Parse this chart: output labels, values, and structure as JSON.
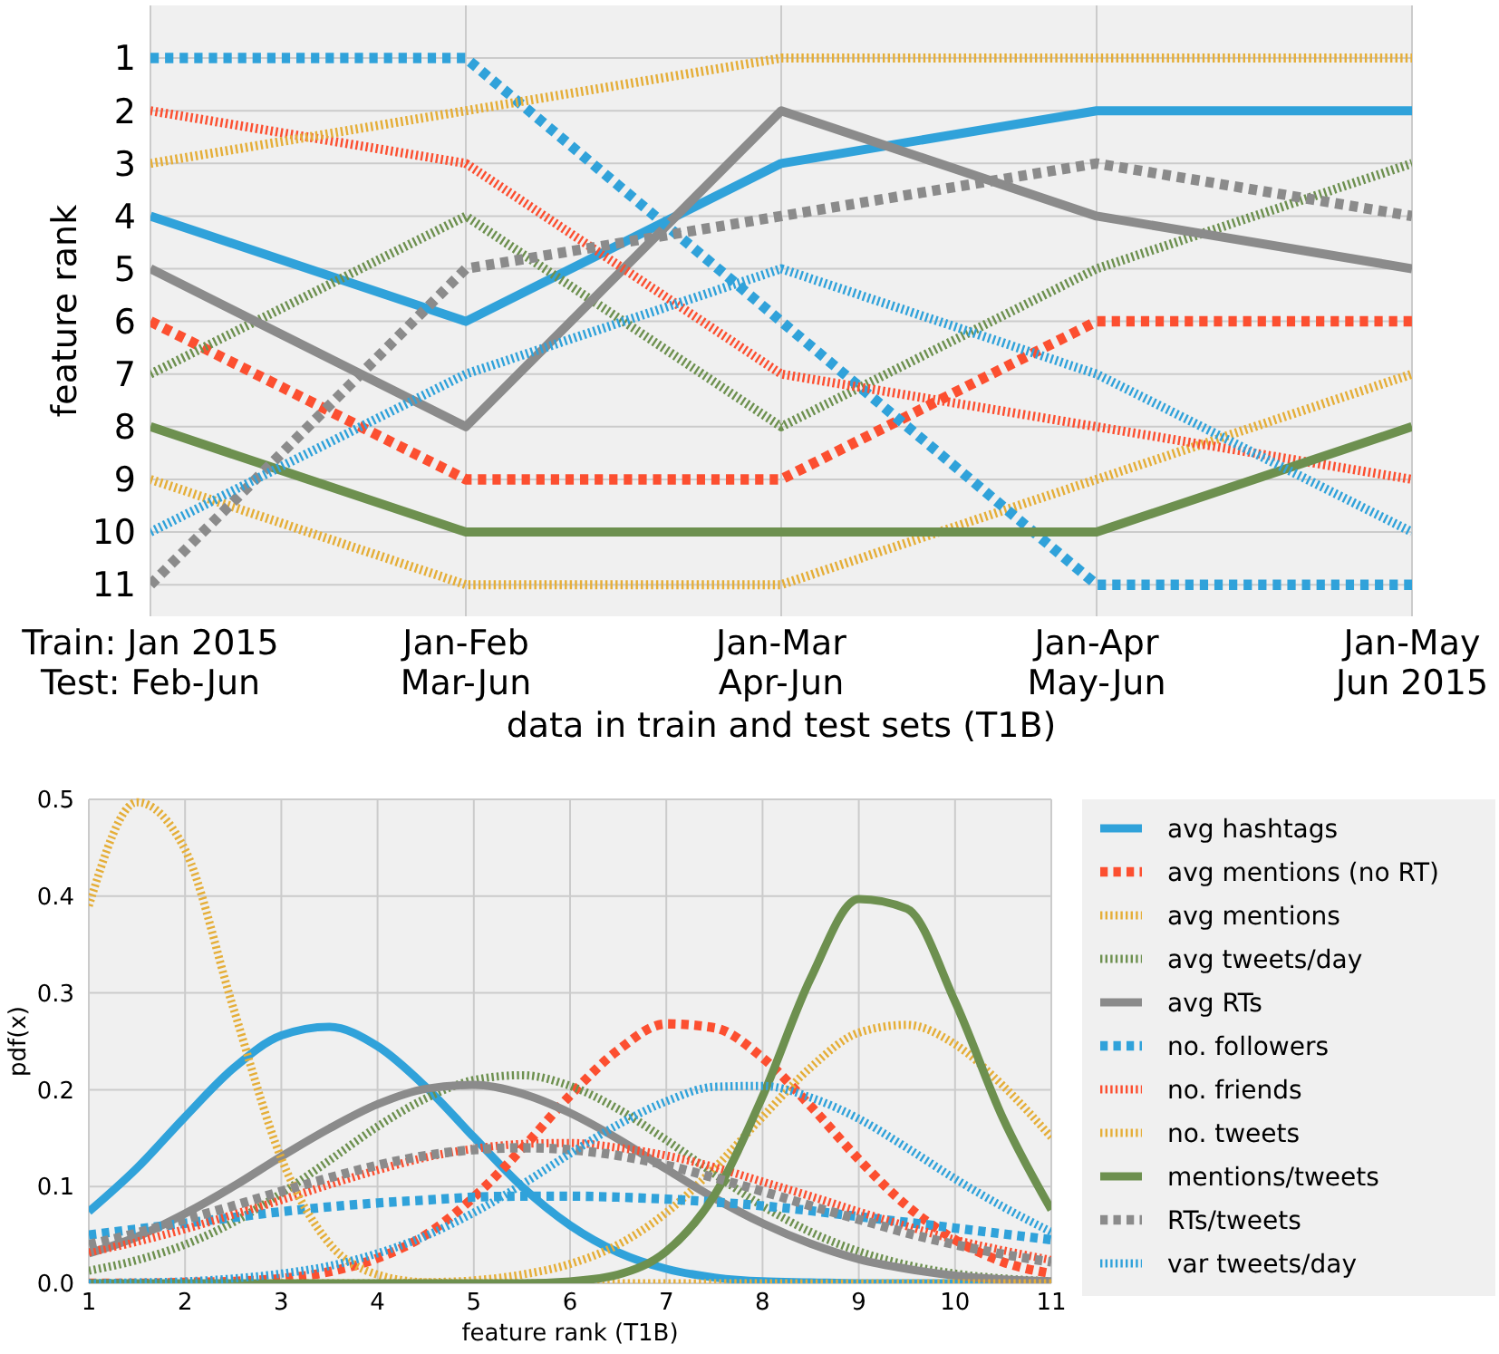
{
  "chart_data": [
    {
      "type": "line",
      "ylabel": "feature rank",
      "xlabel": "data in train and test sets (T1B)",
      "categories": [
        "Train: Jan 2015\nTest: Feb-Jun",
        "Jan-Feb\nMar-Jun",
        "Jan-Mar\nApr-Jun",
        "Jan-Apr\nMay-Jun",
        "Jan-May\nJun 2015"
      ],
      "ylim": [
        11.6,
        0
      ],
      "yticks": [
        1,
        2,
        3,
        4,
        5,
        6,
        7,
        8,
        9,
        10,
        11
      ],
      "grid": true,
      "series": [
        {
          "color": "#30a2da",
          "line_style": "solid",
          "values": [
            4,
            6,
            3,
            2,
            2
          ]
        },
        {
          "color": "#fc4f30",
          "line_style": "dashed",
          "values": [
            6,
            9,
            9,
            6,
            6
          ]
        },
        {
          "color": "#e5ae38",
          "line_style": "dotted",
          "values": [
            9,
            11,
            11,
            9,
            7
          ]
        },
        {
          "color": "#6d904f",
          "line_style": "dotted",
          "values": [
            7,
            4,
            8,
            5,
            3
          ]
        },
        {
          "color": "#8b8b8b",
          "line_style": "solid",
          "values": [
            5,
            8,
            2,
            4,
            5
          ]
        },
        {
          "color": "#30a2da",
          "line_style": "dashed",
          "values": [
            1,
            1,
            6,
            11,
            11
          ]
        },
        {
          "color": "#fc4f30",
          "line_style": "dotted",
          "values": [
            2,
            3,
            7,
            8,
            9
          ]
        },
        {
          "color": "#e5ae38",
          "line_style": "dotted",
          "values": [
            3,
            2,
            1,
            1,
            1
          ]
        },
        {
          "color": "#6d904f",
          "line_style": "solid",
          "values": [
            8,
            10,
            10,
            10,
            8
          ]
        },
        {
          "color": "#8b8b8b",
          "line_style": "dashed",
          "values": [
            11,
            5,
            4,
            3,
            4
          ]
        },
        {
          "color": "#30a2da",
          "line_style": "dotted",
          "values": [
            10,
            7,
            5,
            7,
            10
          ]
        }
      ]
    },
    {
      "type": "line",
      "xlabel": "feature rank (T1B)",
      "ylabel": "pdf(x)",
      "x": [
        1,
        1.5,
        2,
        2.5,
        3,
        3.5,
        4,
        4.5,
        5,
        5.5,
        6,
        6.5,
        7,
        7.5,
        8,
        8.5,
        9,
        9.5,
        10,
        10.5,
        11
      ],
      "xlim": [
        1,
        11
      ],
      "xticks": [
        1,
        2,
        3,
        4,
        5,
        6,
        7,
        8,
        9,
        10,
        11
      ],
      "ylim": [
        0,
        0.5
      ],
      "yticks": [
        {
          "value": 0,
          "label": "0.0"
        },
        {
          "value": 0.1,
          "label": "0.1"
        },
        {
          "value": 0.2,
          "label": "0.2"
        },
        {
          "value": 0.3,
          "label": "0.3"
        },
        {
          "value": 0.4,
          "label": "0.4"
        },
        {
          "value": 0.5,
          "label": "0.5"
        }
      ],
      "grid": true,
      "legend": "right",
      "series": [
        {
          "name": "avg hashtags",
          "color": "#30a2da",
          "line_style": "solid",
          "values": [
            0.074,
            0.119,
            0.172,
            0.222,
            0.256,
            0.265,
            0.245,
            0.203,
            0.151,
            0.1,
            0.06,
            0.032,
            0.015,
            0.006,
            0.002,
            0.001,
            0,
            0,
            0,
            0,
            0
          ]
        },
        {
          "name": "avg mentions (no RT)",
          "color": "#fc4f30",
          "line_style": "dashed",
          "values": [
            0,
            0,
            0.001,
            0.002,
            0.005,
            0.012,
            0.026,
            0.05,
            0.089,
            0.139,
            0.194,
            0.241,
            0.268,
            0.264,
            0.233,
            0.183,
            0.128,
            0.08,
            0.045,
            0.022,
            0.01
          ]
        },
        {
          "name": "avg mentions",
          "color": "#e5ae38",
          "line_style": "dotted",
          "values": [
            null,
            null,
            null,
            null,
            0,
            0,
            0,
            0.001,
            0.003,
            0.009,
            0.02,
            0.04,
            0.073,
            0.119,
            0.172,
            0.223,
            0.259,
            0.267,
            0.247,
            0.204,
            0.151
          ]
        },
        {
          "name": "avg tweets/day",
          "color": "#6d904f",
          "line_style": "dotted",
          "values": [
            0.013,
            0.024,
            0.04,
            0.063,
            0.093,
            0.127,
            0.162,
            0.191,
            0.21,
            0.215,
            0.204,
            0.18,
            0.148,
            0.113,
            0.08,
            0.053,
            0.033,
            0.019,
            0.01,
            0.005,
            0.002
          ]
        },
        {
          "name": "avg RTs",
          "color": "#8b8b8b",
          "line_style": "solid",
          "values": [
            0.031,
            0.048,
            0.072,
            0.1,
            0.131,
            0.16,
            0.185,
            0.201,
            0.205,
            0.196,
            0.176,
            0.149,
            0.118,
            0.088,
            0.062,
            0.041,
            0.025,
            0.015,
            0.008,
            0.004,
            0.002
          ]
        },
        {
          "name": "no. followers",
          "color": "#30a2da",
          "line_style": "dashed",
          "values": [
            0.05,
            0.056,
            0.062,
            0.068,
            0.074,
            0.079,
            0.083,
            0.086,
            0.089,
            0.09,
            0.09,
            0.089,
            0.087,
            0.084,
            0.08,
            0.075,
            0.069,
            0.063,
            0.057,
            0.051,
            0.045
          ]
        },
        {
          "name": "no. friends",
          "color": "#fc4f30",
          "line_style": "dotted",
          "values": [
            0.032,
            0.043,
            0.056,
            0.071,
            0.086,
            0.102,
            0.117,
            0.13,
            0.139,
            0.144,
            0.145,
            0.14,
            0.132,
            0.12,
            0.105,
            0.09,
            0.074,
            0.059,
            0.045,
            0.034,
            0.024
          ]
        },
        {
          "name": "no. tweets",
          "color": "#e5ae38",
          "line_style": "dotted",
          "values": [
            0.39,
            0.497,
            0.448,
            0.285,
            0.129,
            0.041,
            0.009,
            0.001,
            0,
            0,
            0,
            0,
            0,
            0,
            0,
            0,
            0,
            0,
            0,
            0,
            0
          ]
        },
        {
          "name": "mentions/tweets",
          "color": "#6d904f",
          "line_style": "solid",
          "values": [
            0,
            0,
            0,
            0,
            0,
            0,
            0,
            0,
            0,
            0,
            0.002,
            0.009,
            0.033,
            0.091,
            0.193,
            0.315,
            0.397,
            0.387,
            0.291,
            0.17,
            0.076
          ]
        },
        {
          "name": "RTs/tweets",
          "color": "#8b8b8b",
          "line_style": "dashed",
          "values": [
            0.04,
            0.052,
            0.066,
            0.08,
            0.095,
            0.109,
            0.122,
            0.132,
            0.138,
            0.14,
            0.138,
            0.132,
            0.122,
            0.109,
            0.095,
            0.08,
            0.066,
            0.052,
            0.04,
            0.03,
            0.022
          ]
        },
        {
          "name": "var tweets/day",
          "color": "#30a2da",
          "line_style": "dotted",
          "values": [
            0,
            0.001,
            0.002,
            0.005,
            0.01,
            0.018,
            0.031,
            0.049,
            0.073,
            0.102,
            0.134,
            0.164,
            0.188,
            0.203,
            0.204,
            0.192,
            0.17,
            0.14,
            0.108,
            0.079,
            0.053
          ]
        }
      ]
    }
  ]
}
